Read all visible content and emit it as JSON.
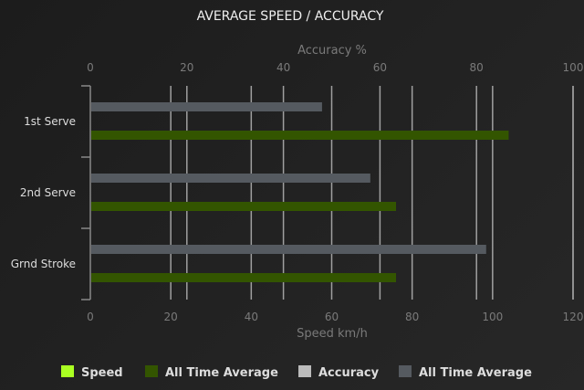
{
  "chart_data": {
    "type": "bar",
    "orientation": "horizontal",
    "title": "AVERAGE SPEED / ACCURACY",
    "categories": [
      "1st Serve",
      "2nd Serve",
      "Grnd Stroke"
    ],
    "top_axis": {
      "label": "Accuracy %",
      "range": [
        0,
        100
      ],
      "ticks": [
        0,
        20,
        40,
        60,
        80,
        100
      ]
    },
    "bottom_axis": {
      "label": "Speed km/h",
      "range": [
        0,
        120
      ],
      "ticks": [
        0,
        20,
        40,
        60,
        80,
        100,
        120
      ]
    },
    "grid": true,
    "legend_position": "bottom",
    "series": [
      {
        "name": "Speed",
        "axis": "bottom",
        "color": "#aaff22",
        "values": [
          0,
          0,
          0
        ]
      },
      {
        "name": "All Time Average",
        "axis": "bottom",
        "color": "#335500",
        "values": [
          104,
          76,
          76
        ]
      },
      {
        "name": "Accuracy",
        "axis": "top",
        "color": "#bbbbbb",
        "values": [
          0,
          0,
          0
        ]
      },
      {
        "name": "All Time Average",
        "axis": "top",
        "color": "#555a60",
        "values": [
          48,
          58,
          82
        ]
      }
    ]
  }
}
